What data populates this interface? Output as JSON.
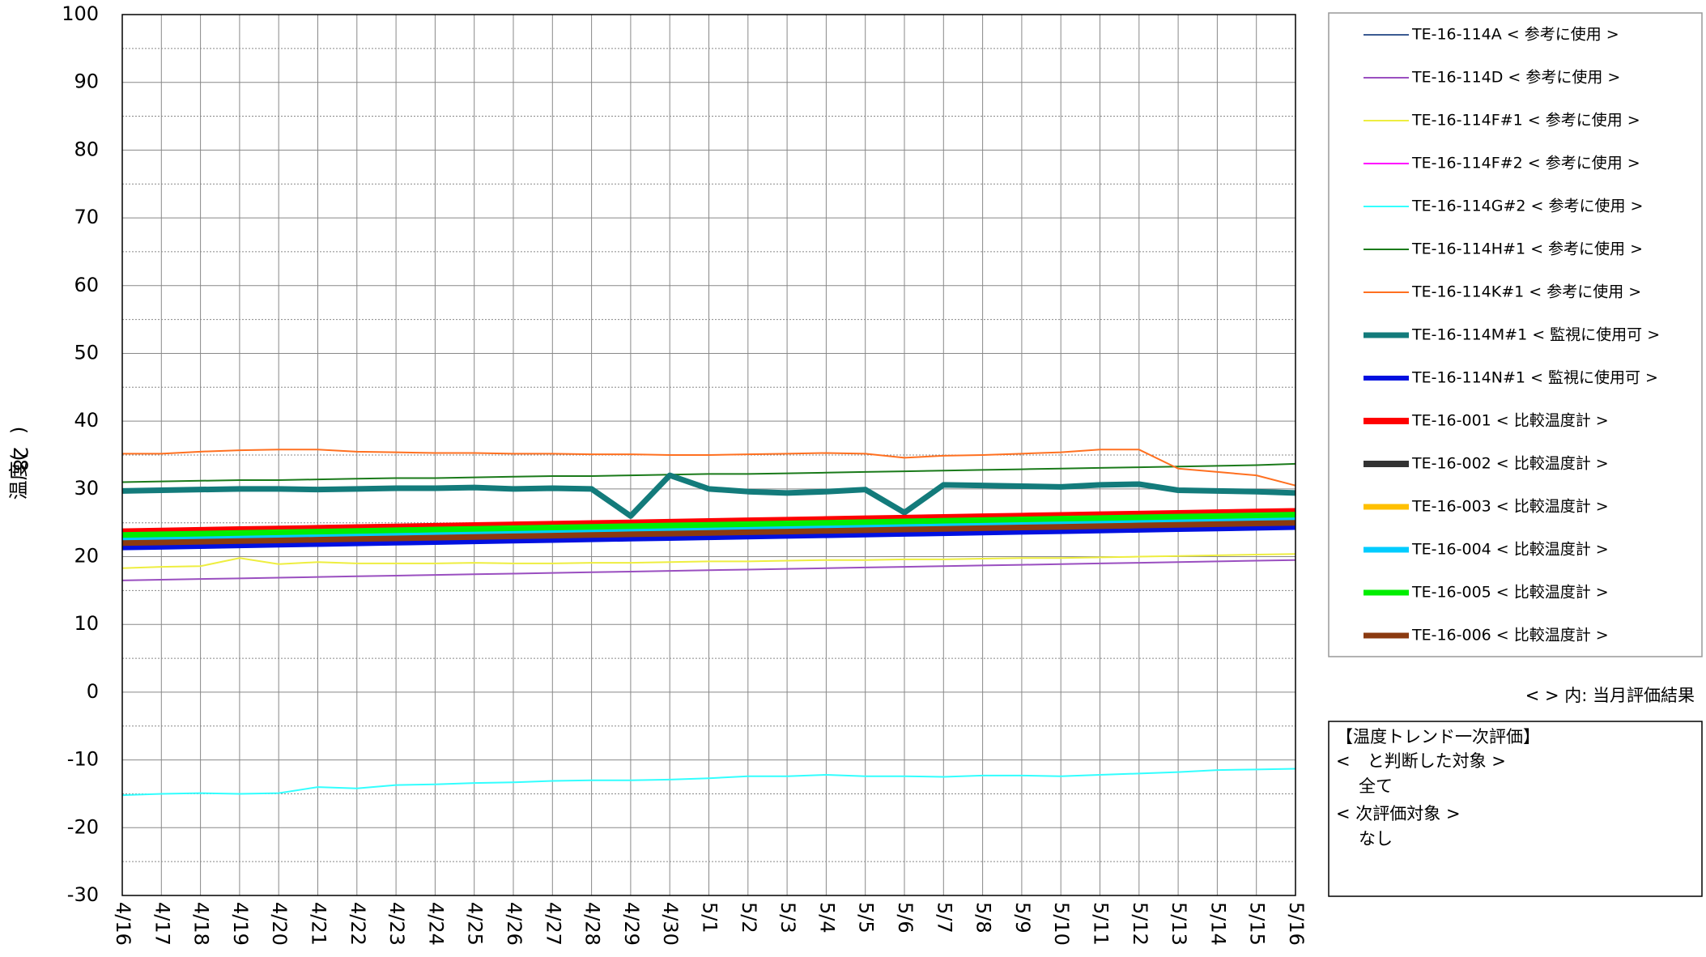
{
  "chart_data": {
    "type": "line",
    "y_label": "温度(　)",
    "y_label_unit": "28",
    "categories": [
      "4/16",
      "4/17",
      "4/18",
      "4/19",
      "4/20",
      "4/21",
      "4/22",
      "4/23",
      "4/24",
      "4/25",
      "4/26",
      "4/27",
      "4/28",
      "4/29",
      "4/30",
      "5/1",
      "5/2",
      "5/3",
      "5/4",
      "5/5",
      "5/6",
      "5/7",
      "5/8",
      "5/9",
      "5/10",
      "5/11",
      "5/12",
      "5/13",
      "5/14",
      "5/15",
      "5/16"
    ],
    "ylim": [
      -30,
      100
    ],
    "yticks": [
      -30,
      -20,
      -10,
      0,
      10,
      20,
      30,
      40,
      50,
      60,
      70,
      80,
      90,
      100
    ],
    "minor_yticks": [
      -25,
      -15,
      -5,
      5,
      15,
      25,
      35,
      45,
      55,
      65,
      75,
      85,
      95
    ],
    "grid": true,
    "legend": "right",
    "series": [
      {
        "name": "TE-16-114A < 参考に使用 >",
        "color": "#3b5b92",
        "width": 2,
        "values": [
          21.5,
          21.6,
          21.7,
          21.8,
          21.9,
          22.0,
          22.1,
          22.2,
          22.3,
          22.4,
          22.5,
          22.6,
          22.7,
          22.8,
          22.9,
          23.0,
          23.1,
          23.2,
          23.3,
          23.4,
          23.5,
          23.6,
          23.7,
          23.8,
          23.9,
          24.0,
          24.1,
          24.2,
          24.3,
          24.4,
          24.5
        ]
      },
      {
        "name": "TE-16-114D < 参考に使用 >",
        "color": "#9a4fc0",
        "width": 2,
        "values": [
          16.5,
          16.6,
          16.7,
          16.8,
          16.9,
          17.0,
          17.1,
          17.2,
          17.3,
          17.4,
          17.5,
          17.6,
          17.7,
          17.8,
          17.9,
          18.0,
          18.1,
          18.2,
          18.3,
          18.4,
          18.5,
          18.6,
          18.7,
          18.8,
          18.9,
          19.0,
          19.1,
          19.2,
          19.3,
          19.4,
          19.5
        ]
      },
      {
        "name": "TE-16-114F#1 < 参考に使用 >",
        "color": "#eeee40",
        "width": 2,
        "values": [
          18.3,
          18.5,
          18.6,
          19.8,
          18.9,
          19.2,
          19.0,
          19.0,
          19.0,
          19.1,
          19.0,
          19.0,
          19.1,
          19.1,
          19.2,
          19.3,
          19.3,
          19.4,
          19.5,
          19.5,
          19.6,
          19.6,
          19.7,
          19.8,
          19.8,
          19.9,
          20.0,
          20.1,
          20.2,
          20.3,
          20.4
        ]
      },
      {
        "name": "TE-16-114F#2 < 参考に使用 >",
        "color": "#ff00ff",
        "width": 2,
        "values": [
          22.0,
          22.1,
          22.2,
          22.3,
          22.4,
          22.5,
          22.6,
          22.7,
          22.8,
          22.9,
          23.0,
          23.1,
          23.2,
          23.3,
          23.4,
          23.5,
          23.6,
          23.7,
          23.8,
          23.9,
          24.0,
          24.1,
          24.2,
          24.3,
          24.4,
          24.5,
          24.6,
          24.7,
          24.8,
          24.9,
          25.0
        ]
      },
      {
        "name": "TE-16-114G#2 < 参考に使用 >",
        "color": "#33ffff",
        "width": 2,
        "values": [
          -15.2,
          -15.0,
          -14.9,
          -15.0,
          -14.9,
          -14.0,
          -14.2,
          -13.7,
          -13.6,
          -13.4,
          -13.3,
          -13.1,
          -13.0,
          -13.0,
          -12.9,
          -12.7,
          -12.4,
          -12.4,
          -12.2,
          -12.4,
          -12.4,
          -12.5,
          -12.3,
          -12.3,
          -12.4,
          -12.2,
          -12.0,
          -11.8,
          -11.5,
          -11.4,
          -11.3
        ]
      },
      {
        "name": "TE-16-114H#1 < 参考に使用 >",
        "color": "#1a7a1a",
        "width": 2,
        "values": [
          31.0,
          31.1,
          31.2,
          31.3,
          31.3,
          31.4,
          31.5,
          31.6,
          31.6,
          31.7,
          31.8,
          31.9,
          31.9,
          32.0,
          32.1,
          32.2,
          32.2,
          32.3,
          32.4,
          32.5,
          32.6,
          32.7,
          32.8,
          32.9,
          33.0,
          33.1,
          33.2,
          33.3,
          33.4,
          33.5,
          33.7
        ]
      },
      {
        "name": "TE-16-114K#1 < 参考に使用 >",
        "color": "#ff7020",
        "width": 2,
        "values": [
          35.2,
          35.2,
          35.5,
          35.7,
          35.8,
          35.8,
          35.5,
          35.4,
          35.3,
          35.3,
          35.2,
          35.2,
          35.1,
          35.1,
          35.0,
          35.0,
          35.1,
          35.2,
          35.3,
          35.2,
          34.6,
          34.9,
          35.0,
          35.2,
          35.4,
          35.8,
          35.8,
          33.0,
          32.5,
          32.0,
          30.5
        ]
      },
      {
        "name": "TE-16-114M#1 < 監視に使用可 >",
        "color": "#137b7b",
        "width": 7,
        "values": [
          29.7,
          29.8,
          29.9,
          30.0,
          30.0,
          29.9,
          30.0,
          30.1,
          30.1,
          30.2,
          30.0,
          30.1,
          30.0,
          26.0,
          32.0,
          30.0,
          29.6,
          29.4,
          29.6,
          29.9,
          26.5,
          30.6,
          30.5,
          30.4,
          30.3,
          30.6,
          30.7,
          29.8,
          29.7,
          29.6,
          29.4
        ]
      },
      {
        "name": "TE-16-114N#1 < 監視に使用可 >",
        "color": "#0010e0",
        "width": 6,
        "values": [
          21.3,
          21.4,
          21.5,
          21.6,
          21.7,
          21.8,
          21.9,
          22.0,
          22.1,
          22.2,
          22.3,
          22.4,
          22.5,
          22.6,
          22.7,
          22.8,
          22.9,
          23.0,
          23.1,
          23.2,
          23.3,
          23.4,
          23.5,
          23.6,
          23.7,
          23.8,
          23.9,
          24.0,
          24.1,
          24.2,
          24.3
        ]
      },
      {
        "name": "TE-16-001 < 比較温度計 >",
        "color": "#ff0000",
        "width": 8,
        "values": [
          23.7,
          23.8,
          23.9,
          24.0,
          24.1,
          24.2,
          24.3,
          24.4,
          24.5,
          24.6,
          24.7,
          24.8,
          24.9,
          25.0,
          25.1,
          25.2,
          25.3,
          25.4,
          25.5,
          25.6,
          25.7,
          25.8,
          25.9,
          26.0,
          26.1,
          26.2,
          26.3,
          26.4,
          26.5,
          26.6,
          26.7
        ]
      },
      {
        "name": "TE-16-002 < 比較温度計 >",
        "color": "#333333",
        "width": 8,
        "values": [
          22.5,
          22.6,
          22.7,
          22.8,
          22.9,
          23.0,
          23.1,
          23.2,
          23.3,
          23.4,
          23.5,
          23.6,
          23.7,
          23.8,
          23.9,
          24.0,
          24.1,
          24.2,
          24.3,
          24.4,
          24.5,
          24.6,
          24.7,
          24.8,
          24.9,
          25.0,
          25.1,
          25.2,
          25.3,
          25.4,
          25.5
        ]
      },
      {
        "name": "TE-16-003 < 比較温度計 >",
        "color": "#ffc000",
        "width": 7,
        "values": [
          23.0,
          23.1,
          23.2,
          23.3,
          23.4,
          23.5,
          23.6,
          23.7,
          23.8,
          23.9,
          24.0,
          24.1,
          24.2,
          24.3,
          24.4,
          24.5,
          24.6,
          24.7,
          24.8,
          24.9,
          25.0,
          25.1,
          25.2,
          25.3,
          25.4,
          25.5,
          25.6,
          25.7,
          25.8,
          25.9,
          26.0
        ]
      },
      {
        "name": "TE-16-004 < 比較温度計 >",
        "color": "#00ccff",
        "width": 7,
        "values": [
          22.6,
          22.7,
          22.8,
          22.9,
          23.0,
          23.1,
          23.2,
          23.3,
          23.4,
          23.5,
          23.6,
          23.7,
          23.8,
          23.9,
          24.0,
          24.1,
          24.2,
          24.3,
          24.4,
          24.5,
          24.6,
          24.7,
          24.8,
          24.9,
          25.0,
          25.1,
          25.2,
          25.3,
          25.4,
          25.5,
          25.6
        ]
      },
      {
        "name": "TE-16-005 < 比較温度計 >",
        "color": "#00ee00",
        "width": 7,
        "values": [
          23.2,
          23.3,
          23.4,
          23.5,
          23.6,
          23.7,
          23.8,
          23.9,
          24.0,
          24.1,
          24.2,
          24.3,
          24.4,
          24.5,
          24.6,
          24.7,
          24.8,
          24.9,
          25.0,
          25.1,
          25.2,
          25.3,
          25.4,
          25.5,
          25.6,
          25.7,
          25.8,
          25.9,
          26.0,
          26.1,
          26.2
        ]
      },
      {
        "name": "TE-16-006 < 比較温度計 >",
        "color": "#8b3a10",
        "width": 7,
        "values": [
          22.0,
          22.1,
          22.2,
          22.3,
          22.4,
          22.5,
          22.6,
          22.7,
          22.8,
          22.9,
          23.0,
          23.1,
          23.2,
          23.3,
          23.4,
          23.5,
          23.6,
          23.7,
          23.8,
          23.9,
          24.0,
          24.1,
          24.2,
          24.3,
          24.4,
          24.5,
          24.6,
          24.7,
          24.8,
          24.9,
          25.0
        ]
      }
    ],
    "note": "< > 内: 当月評価結果",
    "evaluation": {
      "title": "【温度トレンド一次評価】",
      "lines": [
        "<　と判断した対象 >",
        "全て",
        "< 次評価対象 >",
        "なし"
      ]
    }
  }
}
